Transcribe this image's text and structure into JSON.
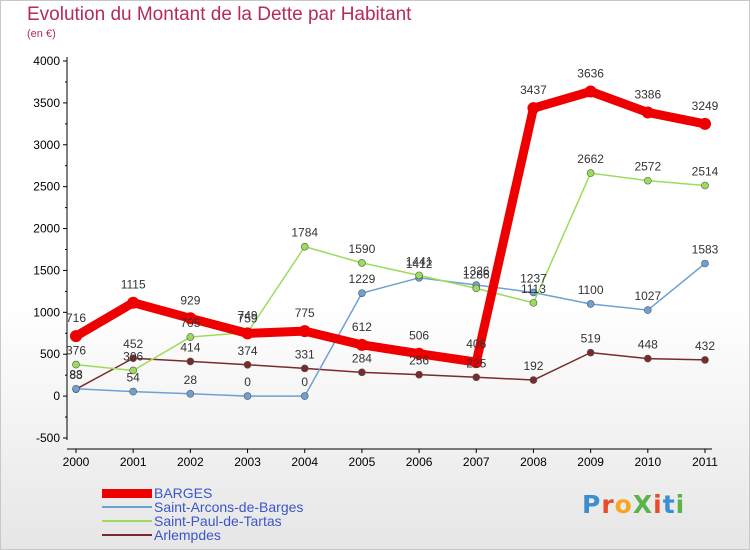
{
  "chart_data": {
    "type": "line",
    "title": "Evolution du Montant de la Dette par Habitant",
    "subtitle": "(en €)",
    "xlabel": "",
    "ylabel": "",
    "ylim": [
      -500,
      4000
    ],
    "yticks": [
      -500,
      0,
      500,
      1000,
      1500,
      2000,
      2500,
      3000,
      3500,
      4000
    ],
    "x": [
      "2000",
      "2001",
      "2002",
      "2003",
      "2004",
      "2005",
      "2006",
      "2007",
      "2008",
      "2009",
      "2010",
      "2011"
    ],
    "grid": false,
    "legend_position": "bottom-left",
    "series": [
      {
        "name": "BARGES",
        "color": "#ee0000",
        "width": 9,
        "radius": 6,
        "values": [
          716,
          1115,
          929,
          749,
          775,
          612,
          506,
          406,
          3437,
          3636,
          3386,
          3249
        ]
      },
      {
        "name": "Saint-Arcons-de-Barges",
        "color": "#6fa0d3",
        "width": 1.5,
        "radius": 3.5,
        "values": [
          88,
          54,
          28,
          0,
          0,
          1229,
          1412,
          1326,
          1237,
          1100,
          1027,
          1583
        ]
      },
      {
        "name": "Saint-Paul-de-Tartas",
        "color": "#9bdd5a",
        "width": 1.5,
        "radius": 3.5,
        "values": [
          376,
          306,
          705,
          759,
          1784,
          1590,
          1441,
          1286,
          1113,
          2662,
          2572,
          2514
        ]
      },
      {
        "name": "Arlempdes",
        "color": "#7a2a2a",
        "width": 1.5,
        "radius": 3.5,
        "values": [
          83,
          452,
          414,
          374,
          331,
          284,
          256,
          225,
          192,
          519,
          448,
          432
        ]
      }
    ]
  },
  "logo": {
    "text": "ProXiti",
    "colors": [
      "#3b8fd0",
      "#e84c2a",
      "#f5a623",
      "#5bb44a",
      "#e84c2a",
      "#3b8fd0",
      "#5bb44a"
    ]
  }
}
